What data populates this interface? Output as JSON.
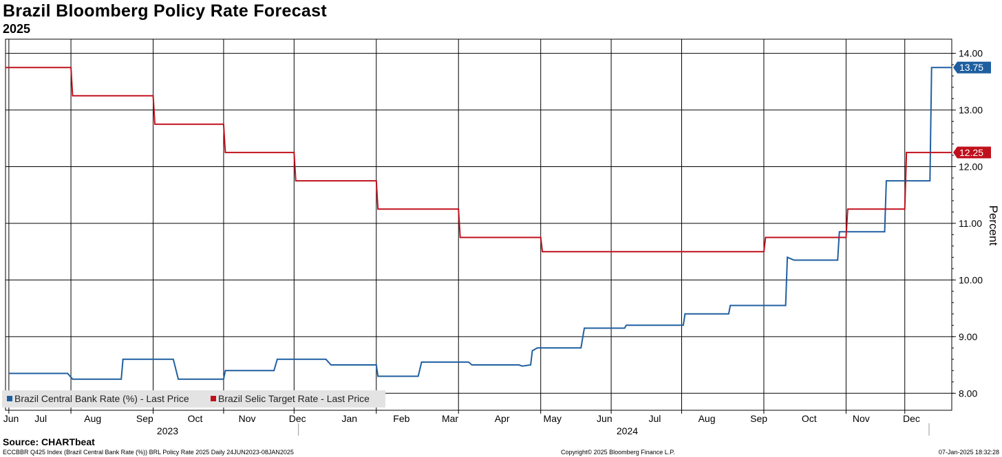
{
  "header": {
    "title": "Brazil Bloomberg Policy Rate Forecast",
    "subtitle": "2025"
  },
  "footer": {
    "source": "Source: CHARTbeat",
    "left_note": "ECCBBR Q425 Index (Brazil Central Bank Rate (%)) BRL Policy Rate 2025  Daily 24JUN2023-08JAN2025",
    "copyright": "Copyright© 2025 Bloomberg Finance L.P.",
    "timestamp": "07-Jan-2025 18:32:28"
  },
  "colors": {
    "blue": "#1f5fa0",
    "red": "#c0101c",
    "grid": "#000000"
  },
  "chart_data": {
    "type": "line",
    "ylabel": "Percent",
    "ylim": [
      7.7,
      14.25
    ],
    "yticks": [
      8.0,
      9.0,
      10.0,
      11.0,
      12.0,
      13.0,
      14.0
    ],
    "ytick_labels": [
      "8.00",
      "9.00",
      "10.00",
      "11.00",
      "12.00",
      "13.00",
      "14.00"
    ],
    "x_range": [
      "2023-06-24",
      "2025-01-08"
    ],
    "month_ticks": [
      {
        "label": "Jun",
        "date": "2023-06-24"
      },
      {
        "label": "Jul",
        "date": "2023-07-15"
      },
      {
        "label": "Aug",
        "date": "2023-08-15"
      },
      {
        "label": "Sep",
        "date": "2023-09-15"
      },
      {
        "label": "Oct",
        "date": "2023-10-15"
      },
      {
        "label": "Nov",
        "date": "2023-11-15"
      },
      {
        "label": "Dec",
        "date": "2023-12-15"
      },
      {
        "label": "Jan",
        "date": "2024-01-15"
      },
      {
        "label": "Feb",
        "date": "2024-02-15"
      },
      {
        "label": "Mar",
        "date": "2024-03-15"
      },
      {
        "label": "Apr",
        "date": "2024-04-15"
      },
      {
        "label": "May",
        "date": "2024-05-15"
      },
      {
        "label": "Jun",
        "date": "2024-06-15"
      },
      {
        "label": "Jul",
        "date": "2024-07-15"
      },
      {
        "label": "Aug",
        "date": "2024-08-15"
      },
      {
        "label": "Sep",
        "date": "2024-09-15"
      },
      {
        "label": "Oct",
        "date": "2024-10-15"
      },
      {
        "label": "Nov",
        "date": "2024-11-15"
      },
      {
        "label": "Dec",
        "date": "2024-12-15"
      }
    ],
    "grid_lines": [
      "2023-06-26",
      "2023-08-02",
      "2023-09-20",
      "2023-11-01",
      "2023-12-13",
      "2024-01-31",
      "2024-03-20",
      "2024-05-08",
      "2024-06-19",
      "2024-07-31",
      "2024-09-18",
      "2024-11-06",
      "2024-12-11"
    ],
    "year_labels": [
      {
        "label": "2023",
        "date": "2023-10-15"
      },
      {
        "label": "2024",
        "date": "2024-07-15"
      }
    ],
    "year_separator": "2024-01-01",
    "grid": true,
    "legend_position": "bottom-left",
    "series": [
      {
        "name": "Brazil Central Bank Rate (%) - Last Price",
        "color": "#1f5fa0",
        "step": true,
        "last_value": "13.75",
        "points": [
          [
            "2023-06-26",
            8.35
          ],
          [
            "2023-07-31",
            8.35
          ],
          [
            "2023-08-03",
            8.25
          ],
          [
            "2023-09-01",
            8.25
          ],
          [
            "2023-09-02",
            8.6
          ],
          [
            "2023-10-02",
            8.6
          ],
          [
            "2023-10-05",
            8.25
          ],
          [
            "2023-11-01",
            8.25
          ],
          [
            "2023-11-02",
            8.4
          ],
          [
            "2023-12-01",
            8.4
          ],
          [
            "2023-12-03",
            8.6
          ],
          [
            "2024-01-01",
            8.6
          ],
          [
            "2024-01-04",
            8.5
          ],
          [
            "2024-01-31",
            8.5
          ],
          [
            "2024-02-01",
            8.3
          ],
          [
            "2024-02-25",
            8.3
          ],
          [
            "2024-02-27",
            8.55
          ],
          [
            "2024-03-26",
            8.55
          ],
          [
            "2024-03-28",
            8.5
          ],
          [
            "2024-04-25",
            8.5
          ],
          [
            "2024-04-27",
            8.48
          ],
          [
            "2024-05-02",
            8.5
          ],
          [
            "2024-05-03",
            8.75
          ],
          [
            "2024-05-06",
            8.8
          ],
          [
            "2024-06-01",
            8.8
          ],
          [
            "2024-06-03",
            9.15
          ],
          [
            "2024-06-27",
            9.15
          ],
          [
            "2024-06-28",
            9.2
          ],
          [
            "2024-08-01",
            9.2
          ],
          [
            "2024-08-02",
            9.4
          ],
          [
            "2024-08-28",
            9.4
          ],
          [
            "2024-08-29",
            9.55
          ],
          [
            "2024-10-01",
            9.55
          ],
          [
            "2024-10-02",
            10.4
          ],
          [
            "2024-10-06",
            10.35
          ],
          [
            "2024-11-01",
            10.35
          ],
          [
            "2024-11-02",
            10.85
          ],
          [
            "2024-11-29",
            10.85
          ],
          [
            "2024-11-30",
            11.75
          ],
          [
            "2024-12-26",
            11.75
          ],
          [
            "2024-12-27",
            13.75
          ],
          [
            "2025-01-08",
            13.75
          ]
        ]
      },
      {
        "name": "Brazil Selic Target Rate - Last Price",
        "color": "#c0101c",
        "step": true,
        "last_value": "12.25",
        "points": [
          [
            "2023-06-24",
            13.75
          ],
          [
            "2023-08-02",
            13.75
          ],
          [
            "2023-08-03",
            13.25
          ],
          [
            "2023-09-20",
            13.25
          ],
          [
            "2023-09-21",
            12.75
          ],
          [
            "2023-11-01",
            12.75
          ],
          [
            "2023-11-02",
            12.25
          ],
          [
            "2023-12-13",
            12.25
          ],
          [
            "2023-12-14",
            11.75
          ],
          [
            "2024-01-31",
            11.75
          ],
          [
            "2024-02-01",
            11.25
          ],
          [
            "2024-03-20",
            11.25
          ],
          [
            "2024-03-21",
            10.75
          ],
          [
            "2024-05-08",
            10.75
          ],
          [
            "2024-05-09",
            10.5
          ],
          [
            "2024-09-18",
            10.5
          ],
          [
            "2024-09-19",
            10.75
          ],
          [
            "2024-11-06",
            10.75
          ],
          [
            "2024-11-07",
            11.25
          ],
          [
            "2024-12-11",
            11.25
          ],
          [
            "2024-12-12",
            12.25
          ],
          [
            "2025-01-08",
            12.25
          ]
        ]
      }
    ]
  }
}
